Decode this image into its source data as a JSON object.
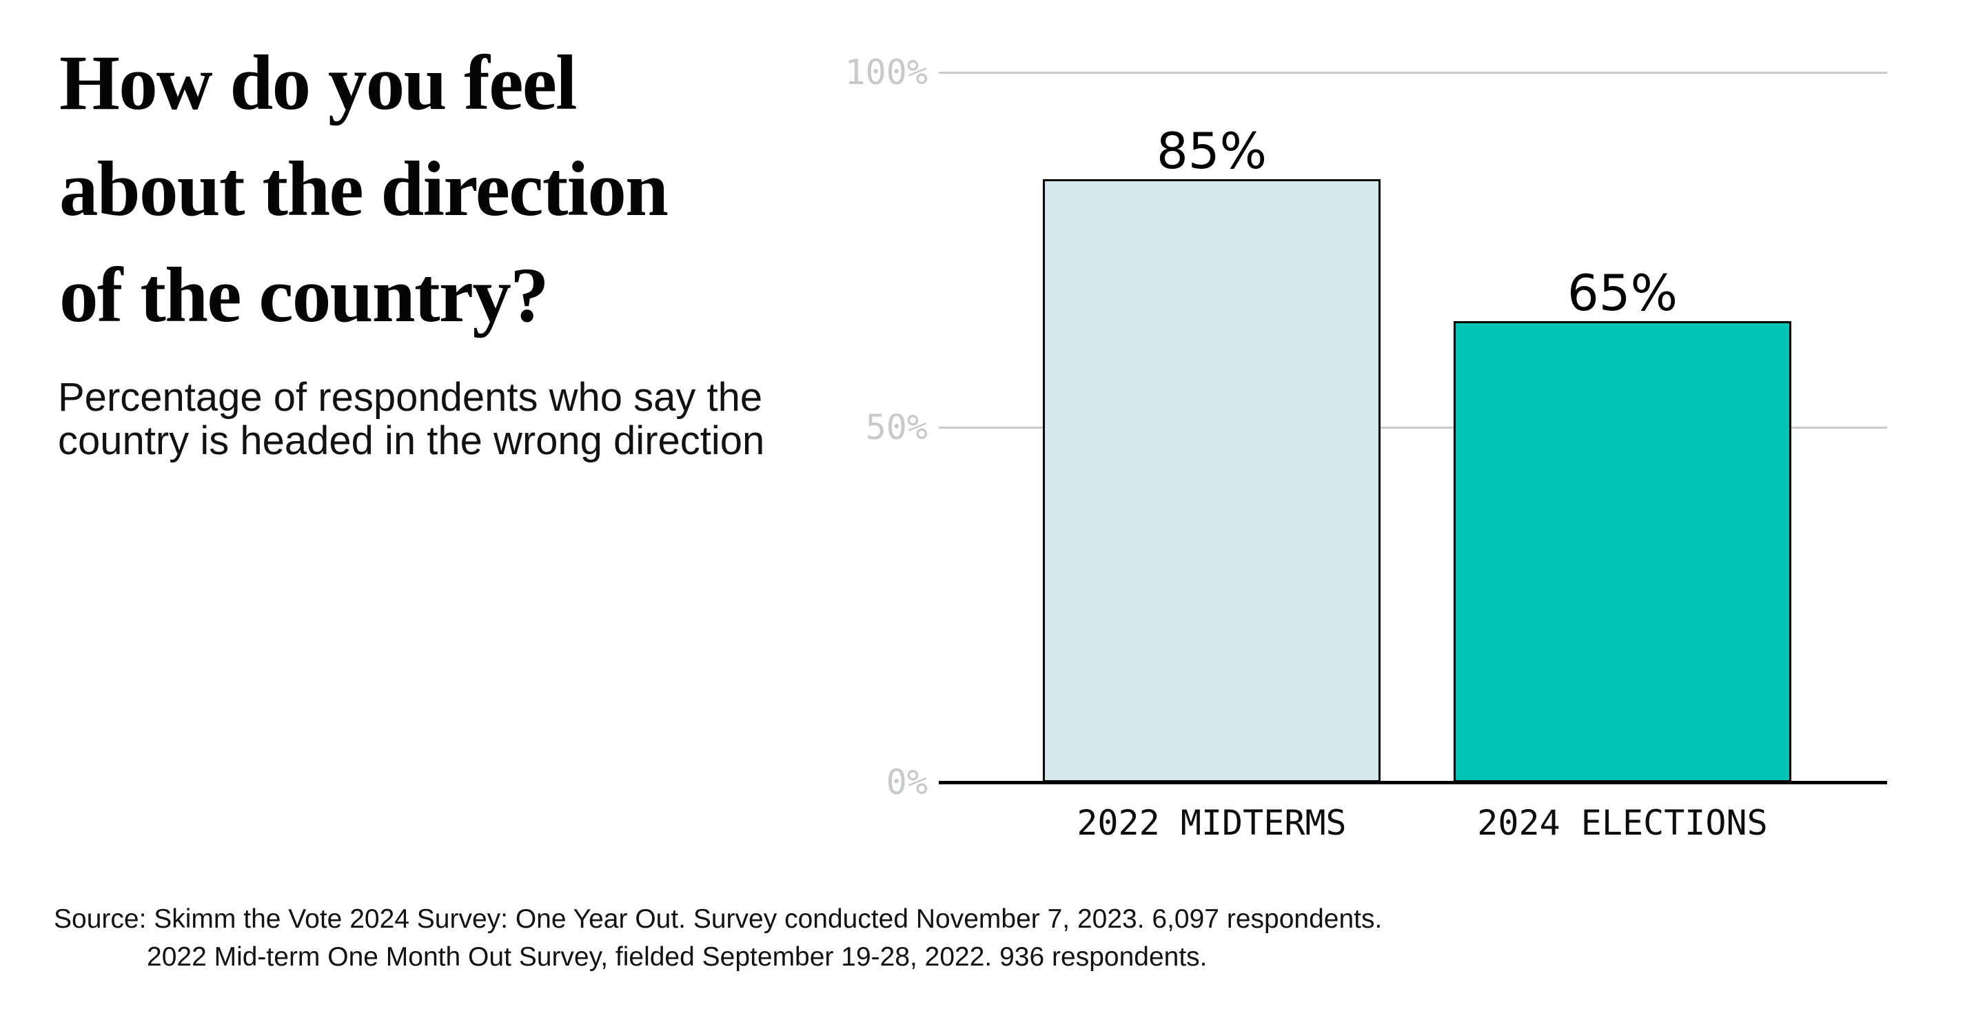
{
  "page": {
    "background": "#ffffff"
  },
  "header": {
    "title": "How do you feel about the direction of the country?",
    "title_lines": [
      "How do you feel",
      "about the direction",
      "of the country?"
    ],
    "subtitle": "Percentage of respondents who say the country is headed in the wrong direction",
    "subtitle_lines": [
      "Percentage of respondents who say the",
      "country is headed in the wrong direction"
    ]
  },
  "footer": {
    "source_line1": "Source: Skimm the Vote 2024 Survey: One Year Out. Survey conducted November 7, 2023. 6,097 respondents.",
    "source_line2": "2022 Mid-term One Month Out Survey, fielded September 19-28, 2022. 936 respondents."
  },
  "chart_data": {
    "type": "bar",
    "title": "How do you feel about the direction of the country?",
    "subtitle": "Percentage of respondents who say the country is headed in the wrong direction",
    "categories": [
      "2022 MIDTERMS",
      "2024 ELECTIONS"
    ],
    "values": [
      85,
      65
    ],
    "value_labels": [
      "85%",
      "65%"
    ],
    "bar_colors": [
      "#D7E7EE",
      "#00C3B3"
    ],
    "bar_border_color": "#000000",
    "xlabel": "",
    "ylabel": "",
    "ylim": [
      0,
      100
    ],
    "yticks": [
      {
        "label": "0%",
        "value": 0
      },
      {
        "label": "50%",
        "value": 50
      },
      {
        "label": "100%",
        "value": 100
      }
    ],
    "grid": "horizontal",
    "gridline_color": "#C9C9C9",
    "axis_color": "#000000",
    "tick_label_color": "#C7CACC",
    "legend": "none"
  }
}
